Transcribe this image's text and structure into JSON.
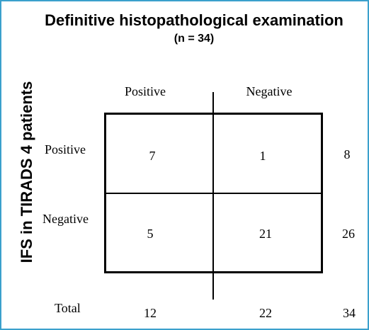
{
  "title": "Definitive histopathological examination",
  "subtitle": "(n = 34)",
  "row_axis_label": "IFS in TIRADS 4 patients",
  "column_headers": [
    "Positive",
    "Negative"
  ],
  "row_headers": [
    "Positive",
    "Negative"
  ],
  "cells": [
    [
      "7",
      "1"
    ],
    [
      "5",
      "21"
    ]
  ],
  "row_totals": [
    "8",
    "26"
  ],
  "total_label": "Total",
  "column_totals": [
    "12",
    "22"
  ],
  "grand_total": "34",
  "colors": {
    "frame": "#3aa0cc",
    "lines": "#000000"
  }
}
